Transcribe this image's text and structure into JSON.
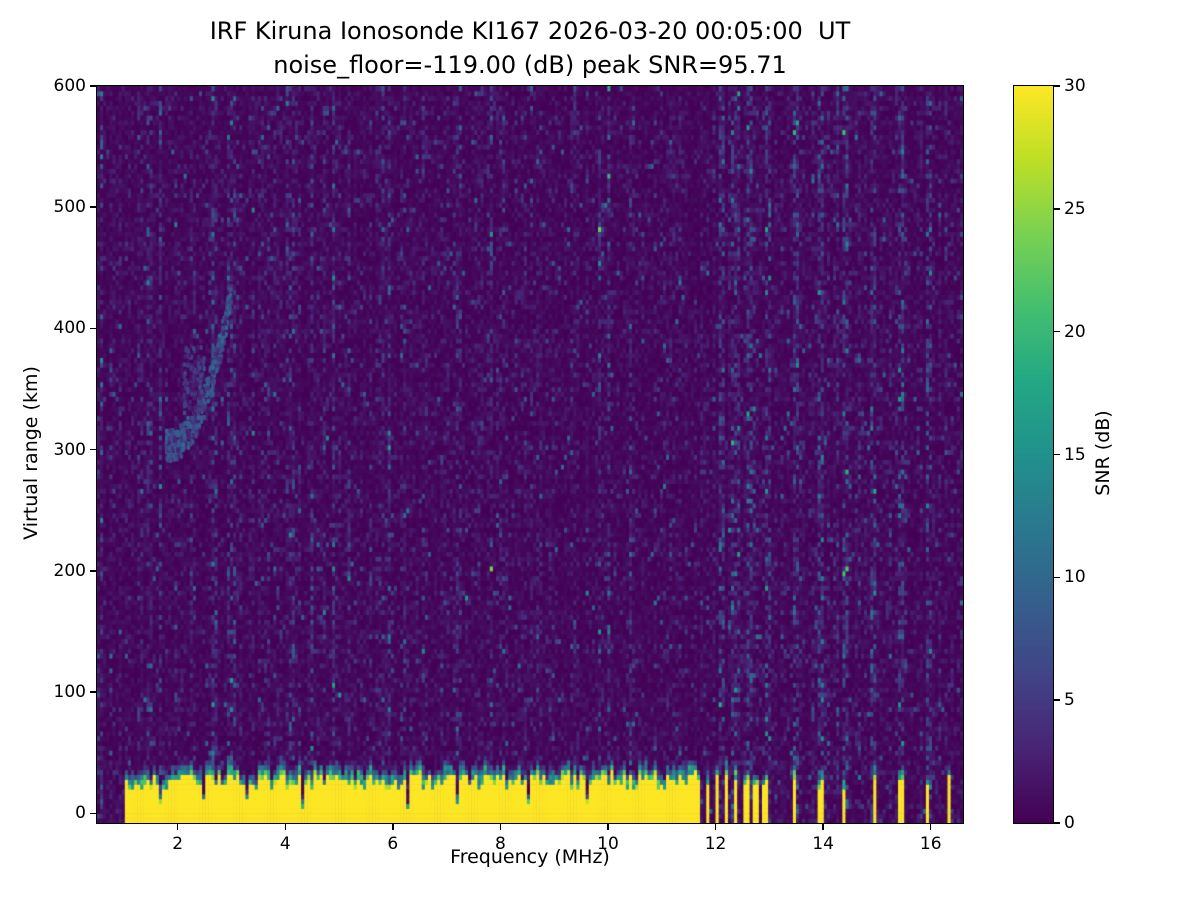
{
  "chart_data": {
    "type": "heatmap",
    "title": "IRF Kiruna Ionosonde KI167 2026-03-20 00:05:00  UT",
    "subtitle": "noise_floor=-119.00 (dB) peak SNR=95.71",
    "station": "IRF Kiruna Ionosonde KI167",
    "timestamp_ut": "2026-03-20 00:05:00",
    "noise_floor_db": -119.0,
    "peak_snr_db": 95.71,
    "xlabel": "Frequency (MHz)",
    "ylabel": "Virtual range (km)",
    "colorbar_label": "SNR (dB)",
    "colormap": "viridis",
    "xlim": [
      0.5,
      16.6
    ],
    "ylim": [
      -8,
      600
    ],
    "clim": [
      0,
      30
    ],
    "x_ticks": [
      2,
      4,
      6,
      8,
      10,
      12,
      14,
      16
    ],
    "y_ticks": [
      0,
      100,
      200,
      300,
      400,
      500,
      600
    ],
    "colorbar_ticks": [
      0,
      5,
      10,
      15,
      20,
      25,
      30
    ],
    "colors": {
      "background": "#ffffff",
      "text": "#000000",
      "cmap_low": "#440154",
      "cmap_high": "#fde725"
    },
    "features": {
      "background_noise_mean_db": 1.1,
      "ground_clutter": {
        "freq_start": 1.0,
        "freq_end": 11.62,
        "top_km": 34,
        "saturated_snr_db": 30
      },
      "clutter_gap_region": {
        "freq_start": 11.62,
        "freq_end": 13.05,
        "stripe_period_mhz": 0.18,
        "duty": 0.5
      },
      "sparse_columns_mhz": [
        13.45,
        13.95,
        14.4,
        14.95,
        15.45,
        15.95,
        16.35
      ],
      "rfi_columns_mhz": [
        12.1,
        12.35,
        12.65,
        12.95,
        13.5,
        13.95,
        14.4,
        14.95,
        15.45,
        15.95
      ],
      "noisy_streak_columns_mhz": [
        1.45,
        2.95,
        4.05,
        7.2
      ],
      "clutter_notches_mhz": [
        1.7,
        2.5,
        3.3,
        4.3,
        6.3,
        7.2,
        8.5,
        9.6
      ],
      "echo_trace": {
        "freq_start": 1.78,
        "freq_end": 3.0,
        "range_start_km": 303,
        "range_end_km": 430,
        "peak_snr_db": 11
      },
      "diffuse_blob": {
        "freq_start": 2.1,
        "freq_end": 2.5,
        "range_start_km": 330,
        "range_end_km": 385,
        "snr_db": 6
      }
    }
  }
}
